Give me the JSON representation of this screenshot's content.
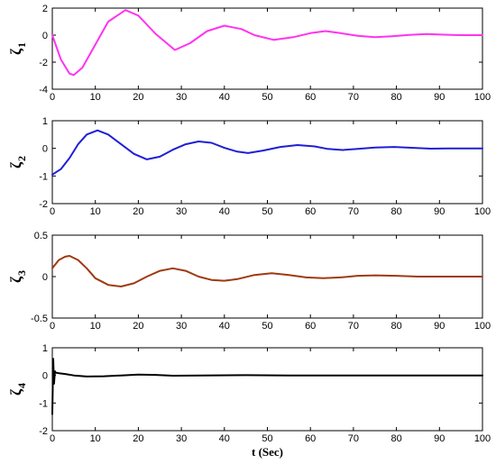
{
  "chart_data": [
    {
      "type": "line",
      "ylabel": "ζ",
      "ylabel_sub": "1",
      "xlim": [
        0,
        100
      ],
      "ylim": [
        -4,
        2
      ],
      "xticks": [
        "0",
        "10",
        "20",
        "30",
        "40",
        "50",
        "60",
        "70",
        "80",
        "90",
        "100"
      ],
      "yticks": [
        "-4",
        "-2",
        "0",
        "2"
      ],
      "color": "#ff33ee",
      "series": [
        {
          "x": [
            0,
            2,
            4,
            5,
            7,
            10,
            13,
            17,
            20,
            24,
            28.5,
            32,
            36,
            40,
            44,
            47,
            51.5,
            56,
            60,
            63.5,
            67,
            71,
            75,
            79,
            83,
            87,
            91,
            95,
            100
          ],
          "y": [
            0,
            -1.8,
            -2.85,
            -2.95,
            -2.4,
            -0.7,
            1.0,
            1.85,
            1.45,
            0.1,
            -1.1,
            -0.6,
            0.3,
            0.7,
            0.45,
            0.0,
            -0.35,
            -0.15,
            0.15,
            0.3,
            0.15,
            -0.05,
            -0.15,
            -0.08,
            0.02,
            0.08,
            0.03,
            0.0,
            0.0
          ]
        }
      ]
    },
    {
      "type": "line",
      "ylabel": "ζ",
      "ylabel_sub": "2",
      "xlim": [
        0,
        100
      ],
      "ylim": [
        -2,
        1
      ],
      "xticks": [
        "0",
        "10",
        "20",
        "30",
        "40",
        "50",
        "60",
        "70",
        "80",
        "90",
        "100"
      ],
      "yticks": [
        "-2",
        "-1",
        "0",
        "1"
      ],
      "color": "#1f1fd6",
      "series": [
        {
          "x": [
            0,
            2,
            4,
            6,
            8,
            10.5,
            13,
            16,
            19,
            22,
            25,
            28,
            31,
            34,
            37,
            40,
            43,
            45.5,
            49,
            53,
            57,
            61,
            64,
            67.5,
            71,
            75,
            79.5,
            84,
            88,
            92,
            96,
            100
          ],
          "y": [
            -0.95,
            -0.75,
            -0.35,
            0.15,
            0.5,
            0.65,
            0.5,
            0.15,
            -0.2,
            -0.4,
            -0.3,
            -0.05,
            0.15,
            0.25,
            0.2,
            0.02,
            -0.12,
            -0.17,
            -0.08,
            0.05,
            0.12,
            0.07,
            -0.02,
            -0.06,
            -0.02,
            0.03,
            0.05,
            0.02,
            -0.01,
            0.0,
            0.0,
            0.0
          ]
        }
      ]
    },
    {
      "type": "line",
      "ylabel": "ζ",
      "ylabel_sub": "3",
      "xlim": [
        0,
        100
      ],
      "ylim": [
        -0.5,
        0.5
      ],
      "xticks": [
        "0",
        "10",
        "20",
        "30",
        "40",
        "50",
        "60",
        "70",
        "80",
        "90",
        "100"
      ],
      "yticks": [
        "-0.5",
        "0",
        "0.5"
      ],
      "color": "#9e3a12",
      "series": [
        {
          "x": [
            0,
            1.5,
            3,
            4,
            6,
            8,
            10,
            13,
            16,
            19,
            22,
            25,
            28,
            31,
            34,
            37,
            40,
            43,
            47,
            51,
            55,
            59,
            63,
            67,
            71,
            75,
            80,
            85,
            90,
            95,
            100
          ],
          "y": [
            0.1,
            0.2,
            0.24,
            0.25,
            0.2,
            0.1,
            -0.02,
            -0.1,
            -0.12,
            -0.08,
            0.0,
            0.07,
            0.1,
            0.07,
            0.0,
            -0.04,
            -0.05,
            -0.03,
            0.02,
            0.04,
            0.02,
            -0.01,
            -0.02,
            -0.01,
            0.01,
            0.015,
            0.01,
            0.0,
            0.0,
            0.0,
            0.0
          ]
        }
      ]
    },
    {
      "type": "line",
      "ylabel": "ζ",
      "ylabel_sub": "4",
      "xlim": [
        0,
        100
      ],
      "ylim": [
        -2,
        1
      ],
      "xticks": [
        "0",
        "10",
        "20",
        "30",
        "40",
        "50",
        "60",
        "70",
        "80",
        "90",
        "100"
      ],
      "yticks": [
        "-2",
        "-1",
        "0",
        "1"
      ],
      "xlabel": "t (Sec)",
      "color": "#000000",
      "series": [
        {
          "x": [
            0,
            0.2,
            0.4,
            0.6,
            0.8,
            1.5,
            3,
            5,
            8,
            12,
            16,
            20,
            24,
            28,
            35,
            45,
            55,
            65,
            75,
            85,
            95,
            100
          ],
          "y": [
            -1.4,
            0.6,
            -0.3,
            0.15,
            0.1,
            0.08,
            0.05,
            0.0,
            -0.04,
            -0.03,
            0.0,
            0.03,
            0.02,
            -0.01,
            0.0,
            0.01,
            0.0,
            0.0,
            0.0,
            0.0,
            0.0,
            0.0
          ]
        }
      ]
    }
  ]
}
